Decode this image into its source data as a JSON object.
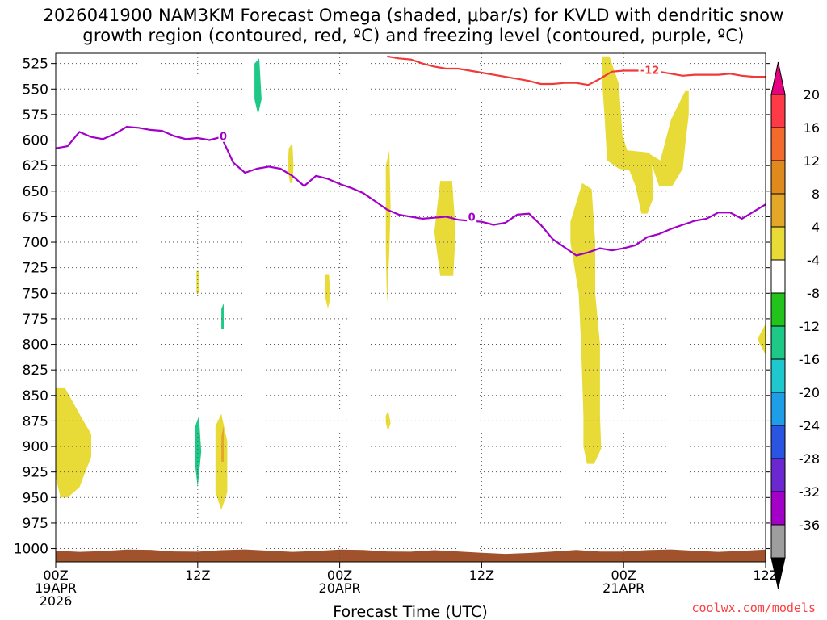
{
  "chart_data": {
    "type": "heatmap",
    "title_line1": "2026041900 NAM3KM Forecast Omega (shaded, μbar/s) for KVLD with dendritic snow",
    "title_line2": "growth region (contoured, red, ºC) and freezing level (contoured, purple, ºC)",
    "xlabel": "Forecast Time (UTC)",
    "ylabel": "",
    "x_range_hours": [
      0,
      60
    ],
    "y_range_mb": [
      515,
      1013
    ],
    "y_ticks": [
      "525",
      "550",
      "575",
      "600",
      "625",
      "650",
      "675",
      "700",
      "725",
      "750",
      "775",
      "800",
      "825",
      "850",
      "875",
      "900",
      "925",
      "950",
      "975",
      "1000"
    ],
    "x_ticks": [
      {
        "hour": 0,
        "line1": "00Z",
        "line2": "19APR",
        "line3": "2026"
      },
      {
        "hour": 12,
        "line1": "12Z",
        "line2": "",
        "line3": ""
      },
      {
        "hour": 24,
        "line1": "00Z",
        "line2": "20APR",
        "line3": ""
      },
      {
        "hour": 36,
        "line1": "12Z",
        "line2": "",
        "line3": ""
      },
      {
        "hour": 48,
        "line1": "00Z",
        "line2": "21APR",
        "line3": ""
      },
      {
        "hour": 60,
        "line1": "12Z",
        "line2": "",
        "line3": ""
      }
    ],
    "colorbar": {
      "labels": [
        "20",
        "16",
        "12",
        "8",
        "4",
        "-4",
        "-8",
        "-12",
        "-16",
        "-20",
        "-24",
        "-28",
        "-32",
        "-36"
      ],
      "colors": [
        "#ff3a47",
        "#f26a2c",
        "#e08a1e",
        "#e3a82a",
        "#e8da37",
        "#ffffff",
        "#22c31a",
        "#1ec988",
        "#1fc8cf",
        "#1f9ee8",
        "#2a55e0",
        "#6b28d0",
        "#a300c8",
        "#9e9e9e"
      ],
      "top_arrow_color": "#e60082",
      "bottom_arrow_color": "#000000"
    },
    "freezing_level": {
      "label": "0",
      "color": "#a000c8",
      "points": [
        [
          0,
          608
        ],
        [
          1,
          606
        ],
        [
          2,
          592
        ],
        [
          3,
          597
        ],
        [
          4,
          599
        ],
        [
          5,
          594
        ],
        [
          6,
          587
        ],
        [
          7,
          588
        ],
        [
          8,
          590
        ],
        [
          9,
          591
        ],
        [
          10,
          596
        ],
        [
          11,
          599
        ],
        [
          12,
          598
        ],
        [
          13,
          600
        ],
        [
          14,
          597
        ],
        [
          15,
          622
        ],
        [
          16,
          632
        ],
        [
          17,
          628
        ],
        [
          18,
          626
        ],
        [
          19,
          628
        ],
        [
          20,
          635
        ],
        [
          21,
          645
        ],
        [
          22,
          635
        ],
        [
          23,
          638
        ],
        [
          24,
          643
        ],
        [
          25,
          647
        ],
        [
          26,
          652
        ],
        [
          27,
          660
        ],
        [
          28,
          668
        ],
        [
          29,
          673
        ],
        [
          30,
          675
        ],
        [
          31,
          677
        ],
        [
          32,
          676
        ],
        [
          33,
          675
        ],
        [
          34,
          678
        ],
        [
          35,
          679
        ],
        [
          36,
          680
        ],
        [
          37,
          683
        ],
        [
          38,
          681
        ],
        [
          39,
          673
        ],
        [
          40,
          672
        ],
        [
          41,
          683
        ],
        [
          42,
          697
        ],
        [
          43,
          705
        ],
        [
          44,
          713
        ],
        [
          45,
          710
        ],
        [
          46,
          706
        ],
        [
          47,
          708
        ],
        [
          48,
          706
        ],
        [
          49,
          703
        ],
        [
          50,
          695
        ],
        [
          51,
          692
        ],
        [
          52,
          687
        ],
        [
          53,
          683
        ],
        [
          54,
          679
        ],
        [
          55,
          677
        ],
        [
          56,
          671
        ],
        [
          57,
          671
        ],
        [
          58,
          677
        ],
        [
          59,
          670
        ],
        [
          60,
          663
        ]
      ]
    },
    "dgz_minus12": {
      "label": "-12",
      "color": "#f03a3a",
      "points": [
        [
          28,
          518
        ],
        [
          29,
          520
        ],
        [
          30,
          521
        ],
        [
          31,
          525
        ],
        [
          32,
          528
        ],
        [
          33,
          530
        ],
        [
          34,
          530
        ],
        [
          35,
          532
        ],
        [
          36,
          534
        ],
        [
          37,
          536
        ],
        [
          38,
          538
        ],
        [
          39,
          540
        ],
        [
          40,
          542
        ],
        [
          41,
          545
        ],
        [
          42,
          545
        ],
        [
          43,
          544
        ],
        [
          44,
          544
        ],
        [
          45,
          546
        ],
        [
          46,
          540
        ],
        [
          47,
          533
        ],
        [
          48,
          532
        ],
        [
          49,
          532
        ],
        [
          50,
          532
        ],
        [
          51,
          533
        ],
        [
          52,
          535
        ],
        [
          53,
          537
        ],
        [
          54,
          536
        ],
        [
          55,
          536
        ],
        [
          56,
          536
        ],
        [
          57,
          535
        ],
        [
          58,
          537
        ],
        [
          59,
          538
        ],
        [
          60,
          538
        ]
      ]
    },
    "omega_regions": [
      {
        "level": 4,
        "points": [
          [
            0,
            843
          ],
          [
            0.8,
            843
          ],
          [
            2,
            868
          ],
          [
            3,
            888
          ],
          [
            3,
            910
          ],
          [
            2,
            940
          ],
          [
            1,
            950
          ],
          [
            0.4,
            950
          ],
          [
            0,
            930
          ]
        ]
      },
      {
        "level": 4,
        "points": [
          [
            13.5,
            880
          ],
          [
            14,
            868
          ],
          [
            14.5,
            895
          ],
          [
            14.5,
            945
          ],
          [
            14,
            962
          ],
          [
            13.5,
            945
          ]
        ]
      },
      {
        "level": 4,
        "points": [
          [
            11.9,
            728
          ],
          [
            12.1,
            728
          ],
          [
            12.1,
            750
          ],
          [
            11.9,
            750
          ]
        ]
      },
      {
        "level": 4,
        "points": [
          [
            19.7,
            608
          ],
          [
            20,
            603
          ],
          [
            20.1,
            625
          ],
          [
            20,
            642
          ],
          [
            19.8,
            642
          ],
          [
            19.6,
            628
          ]
        ]
      },
      {
        "level": 4,
        "points": [
          [
            22.8,
            732
          ],
          [
            23.1,
            732
          ],
          [
            23.2,
            755
          ],
          [
            23,
            765
          ],
          [
            22.8,
            755
          ]
        ]
      },
      {
        "level": 4,
        "points": [
          [
            27.9,
            625
          ],
          [
            28.2,
            610
          ],
          [
            28.3,
            665
          ],
          [
            28.2,
            708
          ],
          [
            28,
            760
          ],
          [
            27.9,
            708
          ]
        ]
      },
      {
        "level": 4,
        "points": [
          [
            27.9,
            870
          ],
          [
            28.1,
            865
          ],
          [
            28.3,
            877
          ],
          [
            28.1,
            885
          ],
          [
            27.9,
            877
          ]
        ]
      },
      {
        "level": 4,
        "points": [
          [
            32.5,
            640
          ],
          [
            33.5,
            640
          ],
          [
            33.8,
            690
          ],
          [
            33.6,
            733
          ],
          [
            32.5,
            733
          ],
          [
            32,
            690
          ]
        ]
      },
      {
        "level": 4,
        "points": [
          [
            44.5,
            642
          ],
          [
            45.3,
            648
          ],
          [
            45.6,
            700
          ],
          [
            45.6,
            750
          ],
          [
            46,
            800
          ],
          [
            46,
            870
          ],
          [
            46.1,
            902
          ],
          [
            45.5,
            917
          ],
          [
            44.9,
            917
          ],
          [
            44.6,
            900
          ],
          [
            44.6,
            870
          ],
          [
            44.4,
            800
          ],
          [
            44.2,
            750
          ],
          [
            43.5,
            700
          ],
          [
            43.5,
            680
          ]
        ]
      },
      {
        "level": 4,
        "points": [
          [
            46.2,
            518
          ],
          [
            46.8,
            518
          ],
          [
            47.6,
            545
          ],
          [
            47.9,
            595
          ],
          [
            48.3,
            610
          ],
          [
            50,
            612
          ],
          [
            51.1,
            620
          ],
          [
            52,
            580
          ],
          [
            53.2,
            552
          ],
          [
            53.5,
            552
          ],
          [
            53.5,
            575
          ],
          [
            53.2,
            605
          ],
          [
            53,
            628
          ],
          [
            52.1,
            645
          ],
          [
            51,
            645
          ],
          [
            50.4,
            625
          ],
          [
            50.5,
            657
          ],
          [
            50,
            672
          ],
          [
            49.5,
            672
          ],
          [
            49,
            645
          ],
          [
            48.5,
            630
          ],
          [
            47.6,
            628
          ],
          [
            46.6,
            620
          ],
          [
            46.4,
            580
          ],
          [
            46.2,
            545
          ]
        ]
      },
      {
        "level": 4,
        "points": [
          [
            60,
            780
          ],
          [
            59.3,
            795
          ],
          [
            60,
            810
          ]
        ]
      },
      {
        "level": -4,
        "points": [
          [
            9.3,
            760
          ],
          [
            9.9,
            740
          ],
          [
            10.2,
            790
          ],
          [
            10.3,
            838
          ],
          [
            10,
            840
          ],
          [
            9.4,
            828
          ],
          [
            9.2,
            790
          ]
        ]
      },
      {
        "level": -4,
        "points": [
          [
            11.5,
            860
          ],
          [
            11.8,
            851
          ],
          [
            12.3,
            858
          ],
          [
            12.5,
            905
          ],
          [
            12.4,
            948
          ],
          [
            12,
            963
          ],
          [
            11.6,
            950
          ],
          [
            11.4,
            905
          ]
        ]
      },
      {
        "level": -4,
        "points": [
          [
            13.6,
            770
          ],
          [
            14,
            732
          ],
          [
            14.4,
            680
          ],
          [
            14.5,
            760
          ],
          [
            14.4,
            800
          ],
          [
            14,
            810
          ],
          [
            13.7,
            800
          ]
        ]
      },
      {
        "level": -4,
        "points": [
          [
            15.4,
            700
          ],
          [
            15.8,
            555
          ],
          [
            16.3,
            510
          ],
          [
            17.6,
            510
          ],
          [
            17.4,
            550
          ],
          [
            17,
            568
          ],
          [
            16.3,
            568
          ],
          [
            15.9,
            630
          ],
          [
            16.2,
            700
          ],
          [
            16.1,
            780
          ],
          [
            15.9,
            826
          ],
          [
            15.6,
            790
          ],
          [
            15.4,
            740
          ]
        ]
      },
      {
        "level": -4,
        "points": [
          [
            15.1,
            930
          ],
          [
            15.4,
            923
          ],
          [
            15.3,
            955
          ],
          [
            15.1,
            950
          ]
        ]
      },
      {
        "level": -4,
        "points": [
          [
            22.6,
            618
          ],
          [
            22.8,
            590
          ],
          [
            23.1,
            603
          ],
          [
            23.2,
            630
          ],
          [
            22.9,
            660
          ],
          [
            22.6,
            640
          ]
        ]
      },
      {
        "level": -4,
        "points": [
          [
            22.4,
            840
          ],
          [
            22.8,
            822
          ],
          [
            23.3,
            860
          ],
          [
            23.4,
            930
          ],
          [
            22.9,
            960
          ],
          [
            22.5,
            930
          ],
          [
            22.3,
            880
          ]
        ]
      },
      {
        "level": -12,
        "points": [
          [
            16.8,
            525
          ],
          [
            17.2,
            520
          ],
          [
            17.4,
            560
          ],
          [
            17.1,
            575
          ],
          [
            16.8,
            560
          ]
        ]
      },
      {
        "level": -12,
        "points": [
          [
            11.8,
            880
          ],
          [
            12.1,
            870
          ],
          [
            12.3,
            905
          ],
          [
            12,
            940
          ],
          [
            11.8,
            920
          ]
        ]
      },
      {
        "level": -12,
        "points": [
          [
            14.0,
            765
          ],
          [
            14.2,
            760
          ],
          [
            14.2,
            785
          ],
          [
            14.0,
            785
          ]
        ]
      },
      {
        "level": 8,
        "points": [
          [
            14.0,
            890
          ],
          [
            14.2,
            880
          ],
          [
            14.2,
            915
          ],
          [
            14.0,
            915
          ]
        ]
      }
    ]
  },
  "footer": {
    "credit": "coolwx.com/models"
  }
}
